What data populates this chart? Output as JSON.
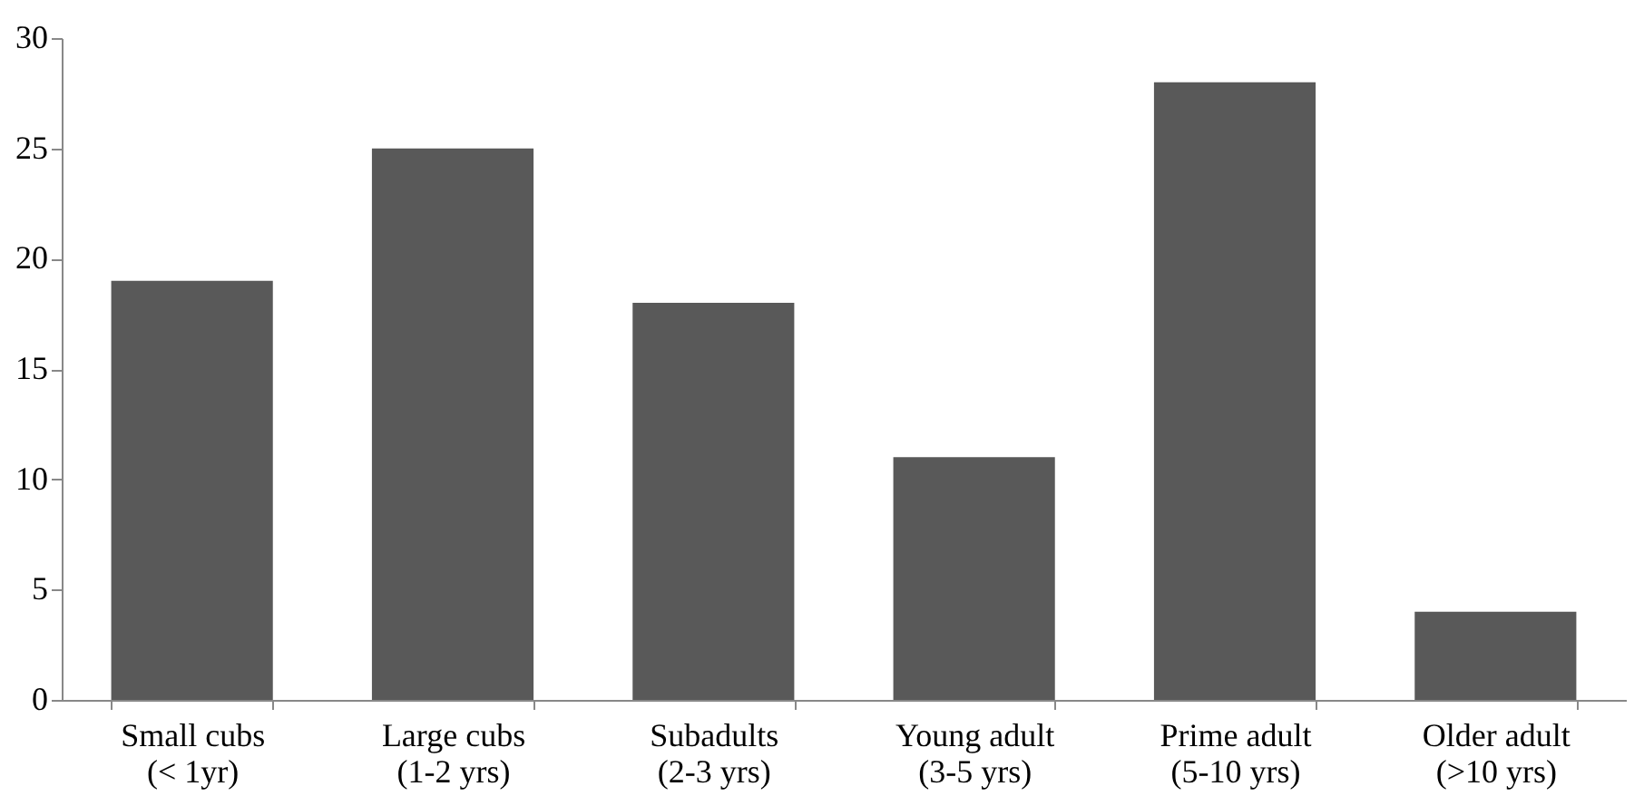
{
  "chart_data": {
    "type": "bar",
    "categories": [
      "Small cubs\n(< 1yr)",
      "Large cubs\n(1-2 yrs)",
      "Subadults\n(2-3 yrs)",
      "Young adult\n(3-5 yrs)",
      "Prime adult\n(5-10 yrs)",
      "Older adult\n(>10 yrs)"
    ],
    "values": [
      19,
      25,
      18,
      11,
      28,
      4
    ],
    "color": "#595959",
    "ylim": [
      0,
      30
    ],
    "yticks": [
      0,
      5,
      10,
      15,
      20,
      25,
      30
    ],
    "grid": false
  }
}
